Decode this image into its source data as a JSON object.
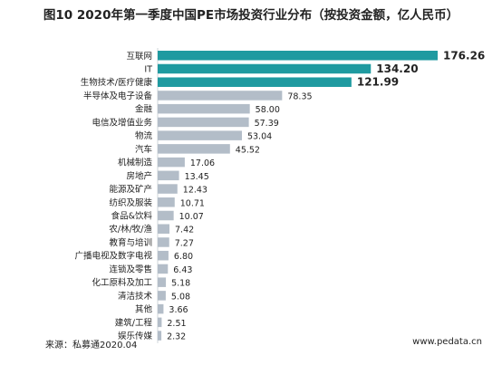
{
  "chart_data": {
    "type": "bar",
    "orientation": "horizontal",
    "title": "图10 2020年第一季度中国PE市场投资行业分布（按投资金额，亿人民币）",
    "categories": [
      "互联网",
      "IT",
      "生物技术/医疗健康",
      "半导体及电子设备",
      "金融",
      "电信及增值业务",
      "物流",
      "汽车",
      "机械制造",
      "房地产",
      "能源及矿产",
      "纺织及服装",
      "食品&饮料",
      "农/林/牧/渔",
      "教育与培训",
      "广播电视及数字电视",
      "连锁及零售",
      "化工原料及加工",
      "清洁技术",
      "其他",
      "建筑/工程",
      "娱乐传媒"
    ],
    "values": [
      176.26,
      134.2,
      121.99,
      78.35,
      58.0,
      57.39,
      53.04,
      45.52,
      17.06,
      13.45,
      12.43,
      10.71,
      10.07,
      7.42,
      7.27,
      6.8,
      6.43,
      5.18,
      5.08,
      3.66,
      2.51,
      2.32
    ],
    "value_labels": [
      "176.26",
      "134.20",
      "121.99",
      "78.35",
      "58.00",
      "57.39",
      "53.04",
      "45.52",
      "17.06",
      "13.45",
      "12.43",
      "10.71",
      "10.07",
      "7.42",
      "7.27",
      "6.80",
      "6.43",
      "5.18",
      "5.08",
      "3.66",
      "2.51",
      "2.32"
    ],
    "highlight_count": 3,
    "colors": {
      "highlight": "#1f9aa0",
      "normal": "#b3bdc8"
    },
    "grid": false,
    "legend": "none"
  },
  "footer": {
    "source": "来源：私募通2020.04",
    "website": "www.pedata.cn"
  }
}
